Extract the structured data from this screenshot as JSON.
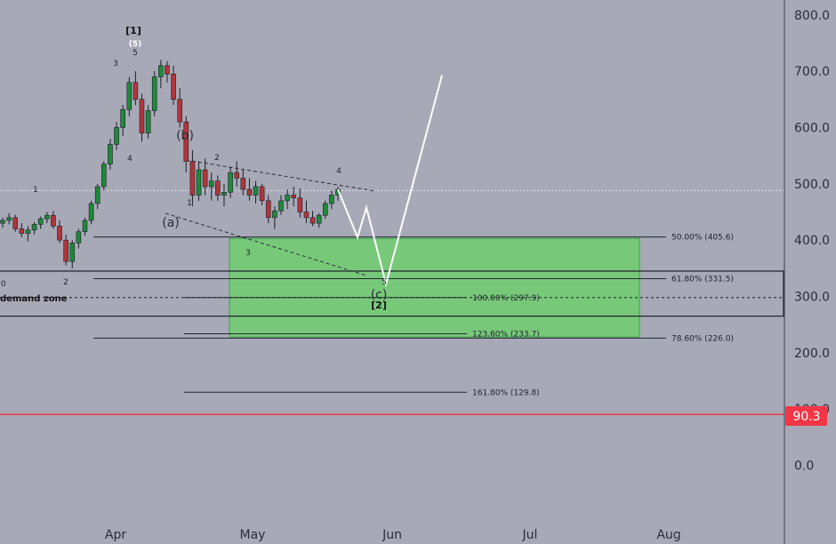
{
  "chart_data": {
    "type": "candlestick",
    "y_axis": {
      "ticks": [
        800,
        700,
        600,
        500,
        400,
        300,
        200,
        0
      ],
      "ylim": [
        -110,
        820
      ],
      "extra_partial_tick": "100.0"
    },
    "x_axis": {
      "labels": [
        "Apr",
        "May",
        "Jun",
        "Jul",
        "Aug"
      ]
    },
    "price_tag": {
      "value": "90.3",
      "color": "#f23645"
    },
    "current_price_dotted": 488,
    "fib_levels": [
      {
        "label": "50.00% (405.6)",
        "value": 405.6
      },
      {
        "label": "61.80% (331.5)",
        "value": 331.5
      },
      {
        "label": "100.00% (297.9)",
        "value": 297.9
      },
      {
        "label": "123.60% (233.7)",
        "value": 233.7
      },
      {
        "label": "78.60% (226.0)",
        "value": 226.0
      },
      {
        "label": "161.80% (129.8)",
        "value": 129.8
      }
    ],
    "zones": {
      "demand_label": "demand zone",
      "target_zone": {
        "top": 403,
        "bottom": 228,
        "color": "#6fcf6f"
      },
      "demand_zone": {
        "top": 345,
        "bottom": 265
      }
    },
    "wave_labels": {
      "big1": "[1]",
      "five_circled": "(5)",
      "big2": "[2]",
      "a": "(a)",
      "b": "(b)",
      "c": "(c)",
      "n1": "1",
      "n2": "2",
      "n3": "3",
      "n4": "4",
      "n5": "5",
      "n0": "0"
    },
    "candles": [
      [
        430,
        440,
        422,
        435
      ],
      [
        435,
        448,
        428,
        440
      ],
      [
        440,
        445,
        415,
        420
      ],
      [
        420,
        430,
        405,
        412
      ],
      [
        412,
        425,
        398,
        418
      ],
      [
        418,
        432,
        410,
        428
      ],
      [
        428,
        442,
        420,
        438
      ],
      [
        438,
        450,
        430,
        444
      ],
      [
        444,
        452,
        420,
        425
      ],
      [
        425,
        435,
        395,
        400
      ],
      [
        400,
        410,
        355,
        362
      ],
      [
        362,
        400,
        350,
        395
      ],
      [
        395,
        420,
        385,
        415
      ],
      [
        415,
        440,
        408,
        435
      ],
      [
        435,
        470,
        428,
        465
      ],
      [
        465,
        500,
        455,
        495
      ],
      [
        495,
        540,
        488,
        535
      ],
      [
        535,
        580,
        525,
        570
      ],
      [
        570,
        610,
        560,
        600
      ],
      [
        600,
        640,
        585,
        632
      ],
      [
        632,
        690,
        620,
        680
      ],
      [
        680,
        700,
        640,
        650
      ],
      [
        650,
        660,
        575,
        590
      ],
      [
        590,
        640,
        580,
        630
      ],
      [
        630,
        700,
        620,
        690
      ],
      [
        690,
        720,
        670,
        710
      ],
      [
        710,
        718,
        680,
        695
      ],
      [
        695,
        710,
        640,
        650
      ],
      [
        650,
        670,
        600,
        610
      ],
      [
        610,
        620,
        520,
        540
      ],
      [
        540,
        560,
        460,
        480
      ],
      [
        480,
        540,
        470,
        525
      ],
      [
        525,
        545,
        480,
        495
      ],
      [
        495,
        520,
        470,
        505
      ],
      [
        505,
        515,
        470,
        480
      ],
      [
        480,
        500,
        460,
        485
      ],
      [
        485,
        530,
        475,
        520
      ],
      [
        520,
        540,
        495,
        510
      ],
      [
        510,
        525,
        480,
        490
      ],
      [
        490,
        510,
        470,
        480
      ],
      [
        480,
        505,
        465,
        495
      ],
      [
        495,
        500,
        462,
        470
      ],
      [
        470,
        480,
        430,
        440
      ],
      [
        440,
        460,
        420,
        452
      ],
      [
        452,
        480,
        445,
        470
      ],
      [
        470,
        490,
        455,
        480
      ],
      [
        480,
        495,
        460,
        475
      ],
      [
        475,
        492,
        440,
        450
      ],
      [
        450,
        470,
        430,
        440
      ],
      [
        440,
        452,
        425,
        430
      ],
      [
        430,
        448,
        422,
        444
      ],
      [
        444,
        470,
        438,
        465
      ],
      [
        465,
        488,
        455,
        480
      ],
      [
        480,
        495,
        470,
        490
      ]
    ]
  }
}
